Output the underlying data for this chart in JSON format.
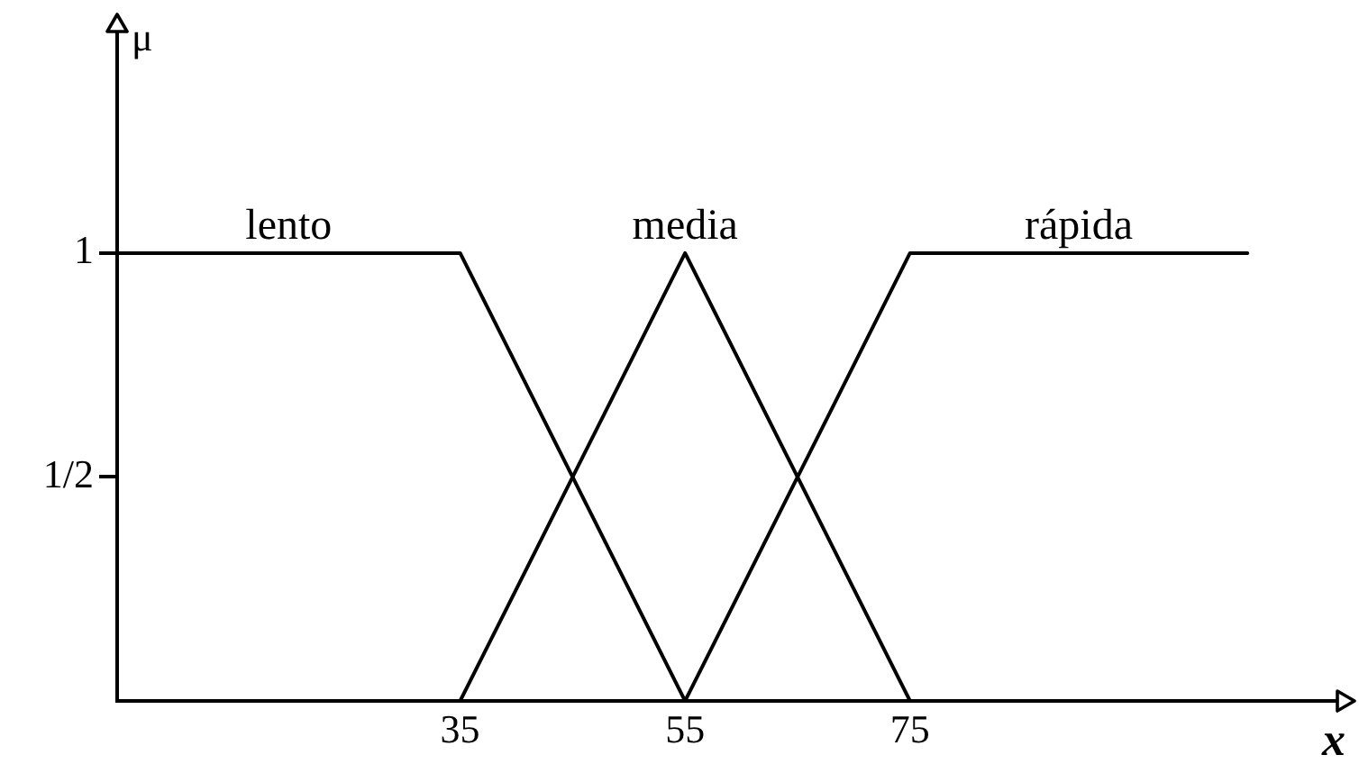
{
  "chart_data": {
    "type": "line",
    "xlabel": "x",
    "ylabel": "μ",
    "xlim": [
      4.5,
      113
    ],
    "xticks": [
      35,
      55,
      75
    ],
    "ylim": [
      0,
      1.5
    ],
    "yticks": [
      {
        "value": 0.5,
        "label": "1/2"
      },
      1
    ],
    "series": [
      {
        "name": "lento",
        "color": "#000000",
        "x": [
          4.5,
          35,
          55
        ],
        "values": [
          1,
          1,
          0
        ]
      },
      {
        "name": "media",
        "color": "#000000",
        "x": [
          35,
          55,
          75
        ],
        "values": [
          0,
          1,
          0
        ]
      },
      {
        "name": "rápida",
        "color": "#000000",
        "x": [
          55,
          75,
          105
        ],
        "values": [
          0,
          1,
          1
        ]
      }
    ],
    "legend": false,
    "grid": false,
    "marker": "none",
    "line_style": "solid"
  }
}
